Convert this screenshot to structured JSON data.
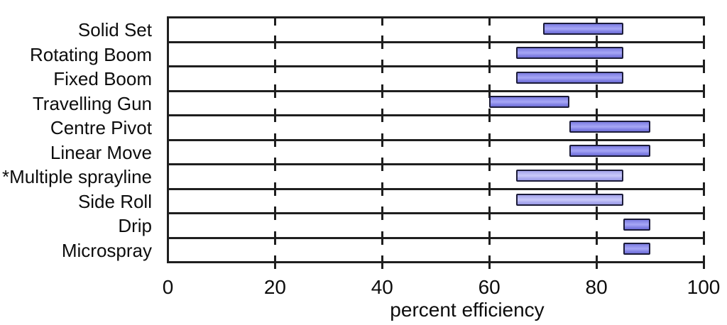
{
  "chart_data": {
    "type": "bar",
    "subtype": "range",
    "orientation": "horizontal",
    "title": "",
    "xlabel": "percent efficiency",
    "xlim": [
      0,
      100
    ],
    "x_ticks": [
      0,
      20,
      40,
      60,
      80,
      100
    ],
    "grid": "horizontal row separator lines with short tick crosses at every 20 units; solid left spine; no right border",
    "legend": "none",
    "categories": [
      "Solid Set",
      "Rotating Boom",
      "Fixed Boom",
      "Travelling Gun",
      "Centre Pivot",
      "Linear Move",
      "*Multiple sprayline",
      "Side Roll",
      "Drip",
      "Microspray"
    ],
    "series": [
      {
        "name": "percent efficiency range",
        "ranges": [
          [
            70,
            85
          ],
          [
            65,
            85
          ],
          [
            65,
            85
          ],
          [
            60,
            75
          ],
          [
            75,
            90
          ],
          [
            75,
            90
          ],
          [
            65,
            85
          ],
          [
            65,
            85
          ],
          [
            85,
            90
          ],
          [
            85,
            90
          ]
        ],
        "bar_style": [
          "normal",
          "normal",
          "normal",
          "normal",
          "normal",
          "normal",
          "light",
          "light",
          "normal",
          "normal"
        ]
      }
    ],
    "colors": {
      "bar_fill": "#8989ea",
      "bar_fill_light": "#b3b3f0",
      "bar_border": "#1b1b38",
      "axis_line": "#1f1f1f",
      "text": "#0d0d0d",
      "background": "#ffffff"
    }
  }
}
